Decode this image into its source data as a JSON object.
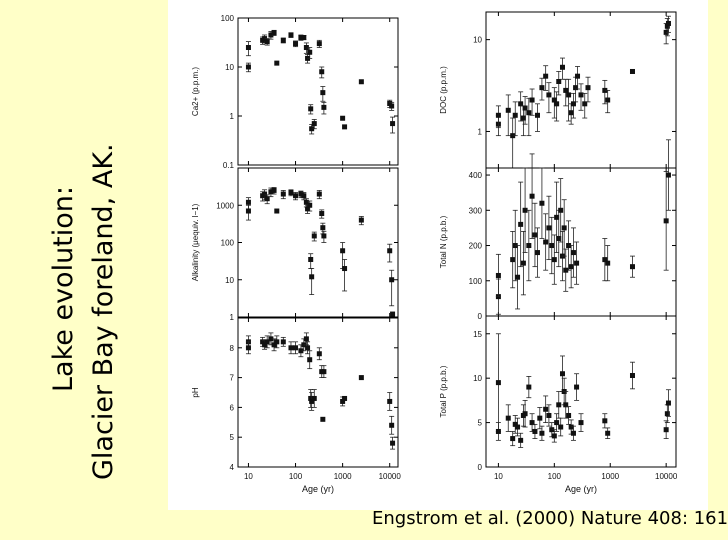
{
  "title": {
    "line1": "Lake evolution:",
    "line2": "Glacier Bay foreland, AK."
  },
  "citation": "Engstrom et al. (2000) Nature 408: 161",
  "colors": {
    "background": "#ffffc8",
    "panel": "#ffffff",
    "ink": "#111111"
  },
  "chart_data": [
    {
      "type": "scatter",
      "panel": "left-1",
      "ylabel": "Ca2+ (p.p.m.)",
      "xlabel": "",
      "xscale": "log",
      "yscale": "log",
      "xlim": [
        6,
        15000
      ],
      "ylim": [
        0.1,
        100
      ],
      "yticks": [
        {
          "v": 0.1,
          "l": "0.1"
        },
        {
          "v": 1,
          "l": "1"
        },
        {
          "v": 10,
          "l": "10"
        },
        {
          "v": 100,
          "l": "100"
        }
      ],
      "points": [
        [
          10,
          25,
          8
        ],
        [
          10,
          10,
          2
        ],
        [
          20,
          35,
          6
        ],
        [
          22,
          38,
          7
        ],
        [
          25,
          33,
          5
        ],
        [
          30,
          45,
          8
        ],
        [
          35,
          50,
          6
        ],
        [
          40,
          12,
          0
        ],
        [
          55,
          35,
          4
        ],
        [
          80,
          45,
          5
        ],
        [
          100,
          30,
          4
        ],
        [
          130,
          40,
          5
        ],
        [
          150,
          40,
          4
        ],
        [
          170,
          25,
          6
        ],
        [
          180,
          15,
          3
        ],
        [
          200,
          20,
          5
        ],
        [
          210,
          1.4,
          0.3
        ],
        [
          220,
          0.55,
          0.12
        ],
        [
          250,
          0.7,
          0.15
        ],
        [
          320,
          30,
          5
        ],
        [
          360,
          8,
          2
        ],
        [
          380,
          3,
          1
        ],
        [
          400,
          1.5,
          0.4
        ],
        [
          1000,
          0.9,
          0
        ],
        [
          1100,
          0.6,
          0
        ],
        [
          2500,
          5,
          0
        ],
        [
          10000,
          1.8,
          0.3
        ],
        [
          11000,
          1.6,
          0.3
        ],
        [
          11500,
          0.7,
          0.25
        ]
      ]
    },
    {
      "type": "scatter",
      "panel": "left-2",
      "ylabel": "Alkalinity (μequiv. l−1)",
      "xlabel": "",
      "xscale": "log",
      "yscale": "log",
      "xlim": [
        6,
        15000
      ],
      "ylim": [
        1,
        10000
      ],
      "yticks": [
        {
          "v": 1,
          "l": "1"
        },
        {
          "v": 10,
          "l": "10"
        },
        {
          "v": 100,
          "l": "100"
        },
        {
          "v": 1000,
          "l": "1000"
        }
      ],
      "points": [
        [
          10,
          1200,
          400
        ],
        [
          10,
          700,
          300
        ],
        [
          20,
          1800,
          500
        ],
        [
          22,
          2000,
          600
        ],
        [
          25,
          1500,
          400
        ],
        [
          30,
          2300,
          600
        ],
        [
          35,
          2500,
          500
        ],
        [
          40,
          700,
          0
        ],
        [
          55,
          2000,
          500
        ],
        [
          80,
          2200,
          400
        ],
        [
          100,
          1800,
          400
        ],
        [
          130,
          2000,
          400
        ],
        [
          150,
          1800,
          400
        ],
        [
          170,
          1200,
          300
        ],
        [
          180,
          800,
          200
        ],
        [
          200,
          1000,
          300
        ],
        [
          210,
          35,
          15
        ],
        [
          220,
          12,
          8
        ],
        [
          250,
          150,
          40
        ],
        [
          320,
          2000,
          500
        ],
        [
          360,
          600,
          150
        ],
        [
          380,
          250,
          80
        ],
        [
          400,
          150,
          50
        ],
        [
          1000,
          60,
          40
        ],
        [
          1100,
          20,
          15
        ],
        [
          2500,
          400,
          100
        ],
        [
          10000,
          60,
          30
        ],
        [
          11000,
          10,
          8
        ],
        [
          11500,
          1.2,
          0
        ]
      ]
    },
    {
      "type": "scatter",
      "panel": "left-3",
      "ylabel": "pH",
      "xlabel": "Age (yr)",
      "xscale": "log",
      "yscale": "linear",
      "xlim": [
        6,
        15000
      ],
      "ylim": [
        4,
        9
      ],
      "yticks": [
        {
          "v": 4,
          "l": "4"
        },
        {
          "v": 5,
          "l": "5"
        },
        {
          "v": 6,
          "l": "6"
        },
        {
          "v": 7,
          "l": "7"
        },
        {
          "v": 8,
          "l": "8"
        }
      ],
      "xticks": [
        {
          "v": 10,
          "l": "10"
        },
        {
          "v": 100,
          "l": "100"
        },
        {
          "v": 1000,
          "l": "1000"
        },
        {
          "v": 10000,
          "l": "10000"
        }
      ],
      "points": [
        [
          10,
          8.2,
          0.2
        ],
        [
          10,
          8.0,
          0.2
        ],
        [
          20,
          8.2,
          0.15
        ],
        [
          22,
          8.1,
          0.15
        ],
        [
          25,
          8.2,
          0.2
        ],
        [
          30,
          8.3,
          0.2
        ],
        [
          35,
          8.1,
          0.2
        ],
        [
          40,
          8.2,
          0.2
        ],
        [
          55,
          8.2,
          0.15
        ],
        [
          80,
          8.0,
          0.2
        ],
        [
          100,
          8.0,
          0.2
        ],
        [
          130,
          7.9,
          0.2
        ],
        [
          150,
          8.1,
          0.2
        ],
        [
          170,
          8.3,
          0.2
        ],
        [
          180,
          8.0,
          0.2
        ],
        [
          200,
          7.6,
          0.3
        ],
        [
          210,
          6.3,
          0.3
        ],
        [
          220,
          6.2,
          0.3
        ],
        [
          250,
          6.3,
          0.3
        ],
        [
          320,
          7.8,
          0.2
        ],
        [
          360,
          7.2,
          0.2
        ],
        [
          380,
          5.6,
          0
        ],
        [
          400,
          7.2,
          0.2
        ],
        [
          1000,
          6.2,
          0.15
        ],
        [
          1100,
          6.3,
          0
        ],
        [
          2500,
          7.0,
          0
        ],
        [
          10000,
          6.2,
          0.3
        ],
        [
          11000,
          5.4,
          0.3
        ],
        [
          11500,
          4.8,
          0.2
        ]
      ]
    },
    {
      "type": "scatter",
      "panel": "right-1",
      "ylabel": "DOC (p.p.m.)",
      "xlabel": "",
      "xscale": "log",
      "yscale": "log",
      "xlim": [
        6,
        15000
      ],
      "ylim": [
        0.4,
        20
      ],
      "yticks": [
        {
          "v": 1,
          "l": "1"
        },
        {
          "v": 10,
          "l": "10"
        }
      ],
      "points": [
        [
          10,
          1.2,
          0.3
        ],
        [
          10,
          1.5,
          0.4
        ],
        [
          15,
          1.7,
          0.8
        ],
        [
          18,
          0.9,
          0.5
        ],
        [
          20,
          1.5,
          0.6
        ],
        [
          25,
          2.0,
          0.7
        ],
        [
          28,
          1.4,
          0.5
        ],
        [
          30,
          1.8,
          0.6
        ],
        [
          35,
          1.6,
          0.7
        ],
        [
          40,
          2.2,
          0.7
        ],
        [
          50,
          1.5,
          0.5
        ],
        [
          60,
          3.0,
          0.8
        ],
        [
          70,
          4.0,
          1.2
        ],
        [
          80,
          2.5,
          0.9
        ],
        [
          100,
          2.2,
          0.8
        ],
        [
          110,
          2.0,
          0.7
        ],
        [
          120,
          3.5,
          1.0
        ],
        [
          140,
          5.0,
          1.3
        ],
        [
          160,
          2.8,
          0.9
        ],
        [
          180,
          2.5,
          1.2
        ],
        [
          200,
          1.6,
          0.4
        ],
        [
          220,
          2.0,
          0.6
        ],
        [
          240,
          3.0,
          0.9
        ],
        [
          260,
          4.0,
          1.1
        ],
        [
          300,
          2.5,
          0.8
        ],
        [
          350,
          2.0,
          0.6
        ],
        [
          400,
          3.0,
          0.9
        ],
        [
          800,
          2.8,
          0.8
        ],
        [
          900,
          2.2,
          0.6
        ],
        [
          2500,
          4.5,
          0
        ],
        [
          10000,
          12,
          3
        ],
        [
          10500,
          14,
          3
        ],
        [
          11000,
          15,
          3
        ]
      ]
    },
    {
      "type": "scatter",
      "panel": "right-2",
      "ylabel": "Total N (p.p.b.)",
      "xlabel": "",
      "xscale": "log",
      "yscale": "linear",
      "xlim": [
        6,
        15000
      ],
      "ylim": [
        0,
        420
      ],
      "yticks": [
        {
          "v": 0,
          "l": "0"
        },
        {
          "v": 100,
          "l": "100"
        },
        {
          "v": 200,
          "l": "200"
        },
        {
          "v": 300,
          "l": "300"
        },
        {
          "v": 400,
          "l": "400"
        }
      ],
      "points": [
        [
          10,
          55,
          50
        ],
        [
          10,
          115,
          60
        ],
        [
          18,
          160,
          80
        ],
        [
          20,
          200,
          100
        ],
        [
          22,
          110,
          90
        ],
        [
          25,
          260,
          120
        ],
        [
          28,
          150,
          90
        ],
        [
          30,
          300,
          120
        ],
        [
          35,
          200,
          100
        ],
        [
          40,
          340,
          120
        ],
        [
          45,
          230,
          90
        ],
        [
          50,
          180,
          70
        ],
        [
          60,
          320,
          100
        ],
        [
          70,
          210,
          80
        ],
        [
          80,
          250,
          90
        ],
        [
          90,
          200,
          80
        ],
        [
          100,
          160,
          70
        ],
        [
          110,
          280,
          100
        ],
        [
          120,
          220,
          80
        ],
        [
          130,
          300,
          90
        ],
        [
          140,
          170,
          70
        ],
        [
          150,
          250,
          80
        ],
        [
          160,
          130,
          60
        ],
        [
          180,
          200,
          70
        ],
        [
          200,
          140,
          60
        ],
        [
          220,
          180,
          70
        ],
        [
          250,
          150,
          60
        ],
        [
          800,
          160,
          60
        ],
        [
          900,
          150,
          50
        ],
        [
          2500,
          140,
          30
        ],
        [
          10000,
          270,
          140
        ],
        [
          11000,
          400,
          100
        ]
      ]
    },
    {
      "type": "scatter",
      "panel": "right-3",
      "ylabel": "Total P (p.p.b.)",
      "xlabel": "Age (yr)",
      "xscale": "log",
      "yscale": "linear",
      "xlim": [
        6,
        15000
      ],
      "ylim": [
        0,
        17
      ],
      "yticks": [
        {
          "v": 0,
          "l": "0"
        },
        {
          "v": 5,
          "l": "5"
        },
        {
          "v": 10,
          "l": "10"
        },
        {
          "v": 15,
          "l": "15"
        }
      ],
      "xticks": [
        {
          "v": 10,
          "l": "10"
        },
        {
          "v": 100,
          "l": "100"
        },
        {
          "v": 1000,
          "l": "1000"
        },
        {
          "v": 10000,
          "l": "10000"
        }
      ],
      "points": [
        [
          10,
          9.5,
          5.5
        ],
        [
          10,
          4.0,
          1.0
        ],
        [
          15,
          5.5,
          1.5
        ],
        [
          18,
          3.2,
          0.8
        ],
        [
          20,
          4.8,
          1.0
        ],
        [
          22,
          4.5,
          1.0
        ],
        [
          25,
          3.0,
          0.8
        ],
        [
          28,
          5.8,
          1.2
        ],
        [
          30,
          6.0,
          1.5
        ],
        [
          35,
          9.0,
          1.2
        ],
        [
          40,
          5.0,
          1.0
        ],
        [
          45,
          4.0,
          0.8
        ],
        [
          55,
          5.5,
          1.2
        ],
        [
          60,
          3.8,
          0.8
        ],
        [
          70,
          6.5,
          1.5
        ],
        [
          80,
          5.8,
          1.2
        ],
        [
          90,
          4.2,
          0.8
        ],
        [
          100,
          3.5,
          0.7
        ],
        [
          110,
          5.0,
          1.0
        ],
        [
          120,
          7.0,
          1.5
        ],
        [
          130,
          4.5,
          1.0
        ],
        [
          140,
          10.5,
          2.0
        ],
        [
          150,
          8.5,
          1.5
        ],
        [
          160,
          7.0,
          1.5
        ],
        [
          180,
          5.8,
          1.0
        ],
        [
          200,
          4.5,
          0.8
        ],
        [
          220,
          3.8,
          0.8
        ],
        [
          250,
          9.0,
          1.5
        ],
        [
          300,
          5.0,
          1.0
        ],
        [
          800,
          5.2,
          0.8
        ],
        [
          900,
          3.8,
          0.6
        ],
        [
          2500,
          10.3,
          1.5
        ],
        [
          10000,
          4.2,
          1.0
        ],
        [
          10500,
          6.0,
          1.0
        ],
        [
          11000,
          7.2,
          1.5
        ]
      ]
    }
  ]
}
